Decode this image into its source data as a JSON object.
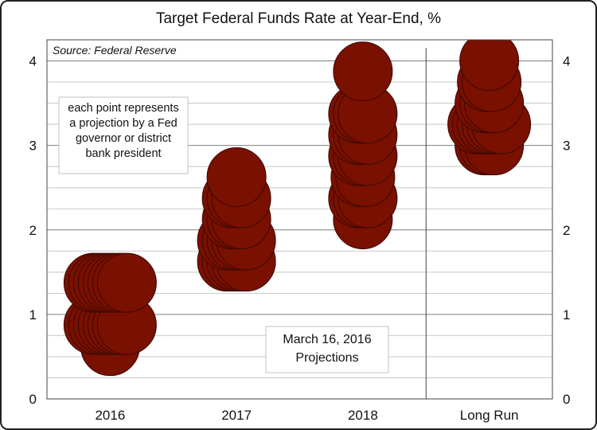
{
  "chart_data": {
    "type": "scatter",
    "title": "Target Federal Funds Rate at Year-End, %",
    "source": "Source: Federal Reserve",
    "categories": [
      "2016",
      "2017",
      "2018",
      "Long Run"
    ],
    "ylim": [
      0,
      4.25
    ],
    "y_ticks": [
      "0",
      "1",
      "2",
      "3",
      "4"
    ],
    "grid": true,
    "minor_gridlines_step": 0.25,
    "dual_y_axis": true,
    "annotations": [
      {
        "lines": [
          "each point represents",
          "a projection by a Fed",
          "governor or district",
          "bank president"
        ]
      },
      {
        "lines": [
          "March 16, 2016",
          "Projections"
        ]
      }
    ],
    "series": [
      {
        "category": "2016",
        "points": [
          0.625,
          0.875,
          0.875,
          0.875,
          0.875,
          0.875,
          0.875,
          0.875,
          0.875,
          1.375,
          1.375,
          1.375,
          1.375,
          1.375,
          1.375,
          1.375,
          1.375
        ]
      },
      {
        "category": "2017",
        "points": [
          1.625,
          1.625,
          1.625,
          1.625,
          1.625,
          1.875,
          1.875,
          1.875,
          1.875,
          1.875,
          2.125,
          2.125,
          2.125,
          2.375,
          2.375,
          2.375,
          2.625
        ]
      },
      {
        "category": "2018",
        "points": [
          2.125,
          2.375,
          2.375,
          2.375,
          2.625,
          2.625,
          2.875,
          2.875,
          2.875,
          3.125,
          3.125,
          3.125,
          3.375,
          3.375,
          3.375,
          3.875
        ]
      },
      {
        "category": "Long Run",
        "points": [
          3.0,
          3.0,
          3.0,
          3.25,
          3.25,
          3.25,
          3.25,
          3.25,
          3.25,
          3.5,
          3.5,
          3.5,
          3.75,
          3.75,
          4.0
        ]
      }
    ],
    "colors": {
      "point_fill": "#7a1000",
      "point_stroke": "#3a0800",
      "gridline": "#c8c8c8",
      "major_gridline": "#7f7f7f",
      "axis": "#444444"
    }
  }
}
